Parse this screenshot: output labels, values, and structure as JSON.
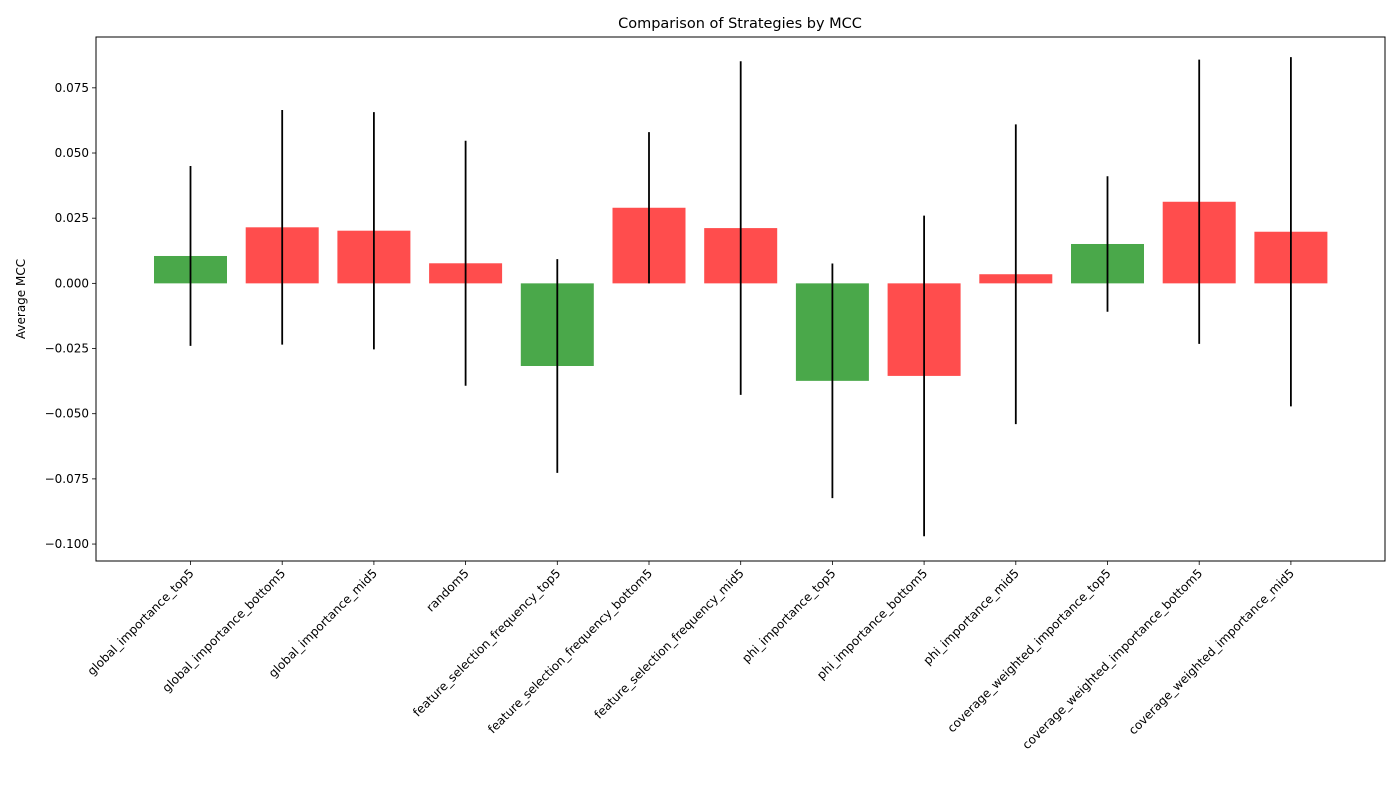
{
  "chart_data": {
    "type": "bar",
    "title": "Comparison of Strategies by MCC",
    "xlabel": "",
    "ylabel": "Average MCC",
    "ylim": [
      -0.1065,
      0.0945
    ],
    "yticks": [
      -0.1,
      -0.075,
      -0.05,
      -0.025,
      0.0,
      0.025,
      0.05,
      0.075
    ],
    "ytick_labels": [
      "−0.100",
      "−0.075",
      "−0.050",
      "−0.025",
      "0.000",
      "0.025",
      "0.050",
      "0.075"
    ],
    "grid": false,
    "categories": [
      "global_importance_top5",
      "global_importance_bottom5",
      "global_importance_mid5",
      "random5",
      "feature_selection_frequency_top5",
      "feature_selection_frequency_bottom5",
      "feature_selection_frequency_mid5",
      "phi_importance_top5",
      "phi_importance_bottom5",
      "phi_importance_mid5",
      "coverage_weighted_importance_top5",
      "coverage_weighted_importance_bottom5",
      "coverage_weighted_importance_mid5"
    ],
    "values": [
      0.0105,
      0.0215,
      0.0202,
      0.0077,
      -0.0317,
      0.029,
      0.0212,
      -0.0374,
      -0.0355,
      0.0035,
      0.0151,
      0.0313,
      0.0198
    ],
    "errors": [
      0.0345,
      0.045,
      0.0455,
      0.047,
      0.041,
      0.029,
      0.064,
      0.045,
      0.0615,
      0.0575,
      0.026,
      0.0545,
      0.067
    ],
    "colors": [
      "#4aa84a",
      "#ff4d4d",
      "#ff4d4d",
      "#ff4d4d",
      "#4aa84a",
      "#ff4d4d",
      "#ff4d4d",
      "#4aa84a",
      "#ff4d4d",
      "#ff4d4d",
      "#4aa84a",
      "#ff4d4d",
      "#ff4d4d"
    ],
    "error_color": "#000000"
  }
}
